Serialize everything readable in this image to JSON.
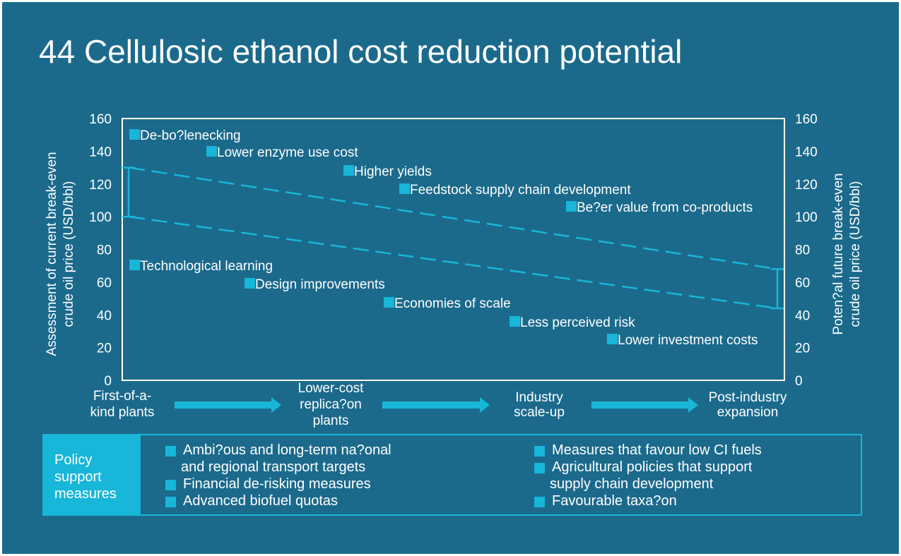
{
  "title": "44 Cellulosic ethanol cost reduction potential",
  "chart_data": {
    "type": "line",
    "ylabel": "Assessment of current break-even crude oil price (USD/bbl)",
    "ylabel_right": "Poten?al future break-even crude oil price (USD/bbl)",
    "ylim": [
      0,
      160
    ],
    "yticks": [
      "0",
      "20",
      "40",
      "60",
      "80",
      "100",
      "120",
      "140",
      "160"
    ],
    "stages": [
      "First-of-a-kind plants",
      "Lower-cost replica?on plants",
      "Industry scale-up",
      "Post-industry expansion"
    ],
    "series": [
      {
        "values": [
          [
            0,
            130
          ],
          [
            1,
            68
          ]
        ]
      },
      {
        "values": [
          [
            0,
            100
          ],
          [
            1,
            44
          ]
        ]
      }
    ],
    "ranges": [
      {
        "low": 100,
        "high": 130
      },
      {
        "low": 44,
        "high": 68
      }
    ],
    "labels_upper": [
      "De-bo?lenecking",
      "Lower enzyme use cost",
      "Higher yields",
      "Feedstock supply chain development",
      "Be?er value from co-products"
    ],
    "labels_lower": [
      "Technological learning",
      "Design improvements",
      "Economies of scale",
      "Less perceived risk",
      "Lower investment costs"
    ]
  },
  "policy": {
    "label": "Policy support measures",
    "left_items": [
      "Ambi?ous and long-term na?onal and regional transport targets",
      "Financial de-risking measures",
      "Advanced biofuel quotas"
    ],
    "right_items": [
      "Measures that favour low CI fuels",
      "Agricultural policies that support supply chain development",
      "Favourable taxa?on"
    ]
  },
  "colors": {
    "background": "#1b6a8c",
    "accent": "#18b6d8",
    "text": "#ffffff"
  }
}
